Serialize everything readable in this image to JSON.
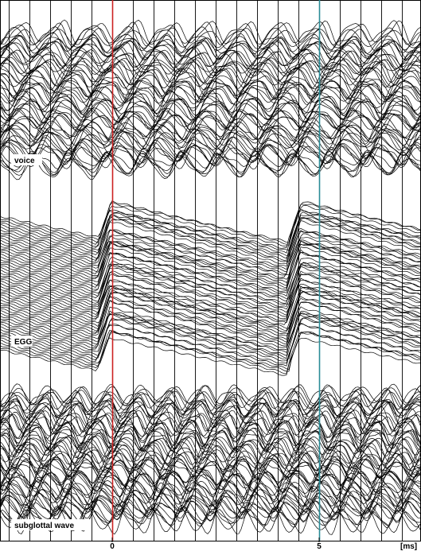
{
  "chart_data": {
    "type": "line",
    "xlabel": "[ms]",
    "x_tick_labels": [
      "0",
      "5"
    ],
    "x_ticks_ms": [
      0,
      5
    ],
    "xlim_ms": [
      -2.5,
      7.3
    ],
    "grid": true,
    "grid_spacing_ms": 0.5,
    "markers": [
      {
        "x_ms": 0,
        "color": "#cc2222"
      },
      {
        "x_ms": 5,
        "color": "#2a8c96"
      }
    ],
    "panels": [
      {
        "label": "voice",
        "kind": "oscillation",
        "period_ms": 0.9,
        "trace_count": 60
      },
      {
        "label": "EGG",
        "kind": "glottal_pulse",
        "period_ms": 4.6,
        "pulse_onsets_ms": [
          -0.2,
          4.4
        ],
        "trace_count": 60
      },
      {
        "label": "subglottal wave",
        "kind": "oscillation",
        "period_ms": 0.75,
        "trace_count": 60
      }
    ]
  }
}
